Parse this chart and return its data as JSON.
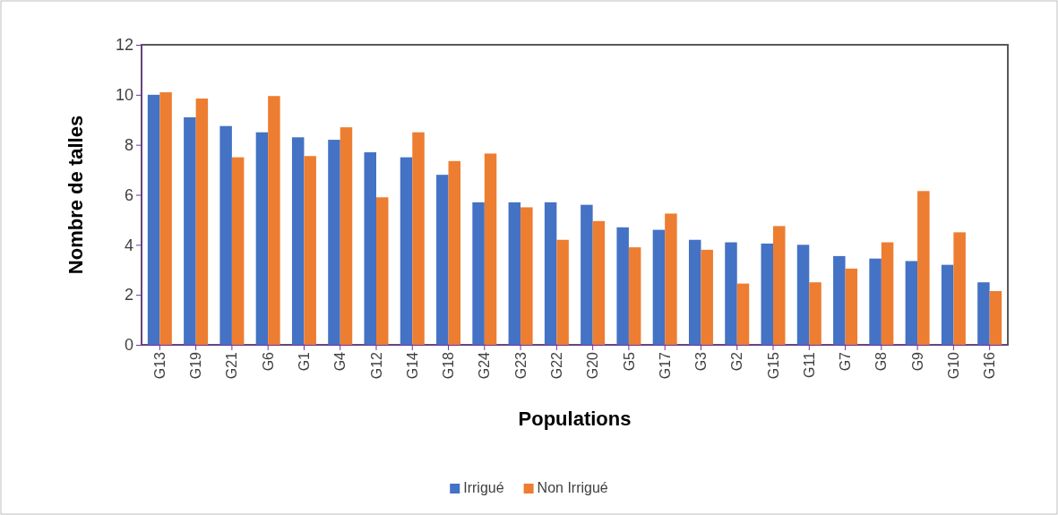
{
  "chart_data": {
    "type": "bar",
    "xlabel": "Populations",
    "ylabel": "Nombre de talles",
    "categories": [
      "G13",
      "G19",
      "G21",
      "G6",
      "G1",
      "G4",
      "G12",
      "G14",
      "G18",
      "G24",
      "G23",
      "G22",
      "G20",
      "G5",
      "G17",
      "G3",
      "G2",
      "G15",
      "G11",
      "G7",
      "G8",
      "G9",
      "G10",
      "G16"
    ],
    "series": [
      {
        "name": "Irrigué",
        "color": "#4472c4",
        "values": [
          10.0,
          9.1,
          8.75,
          8.5,
          8.3,
          8.2,
          7.7,
          7.5,
          6.8,
          5.7,
          5.7,
          5.7,
          5.6,
          4.7,
          4.6,
          4.2,
          4.1,
          4.05,
          4.0,
          3.55,
          3.45,
          3.35,
          3.2,
          2.5
        ]
      },
      {
        "name": "Non Irrigué",
        "color": "#ed7d31",
        "values": [
          10.1,
          9.85,
          7.5,
          9.95,
          7.55,
          8.7,
          5.9,
          8.5,
          7.35,
          7.65,
          5.5,
          4.2,
          4.95,
          3.9,
          5.25,
          3.8,
          2.45,
          4.75,
          2.5,
          3.05,
          4.1,
          6.15,
          4.5,
          2.15
        ]
      }
    ],
    "ylim": [
      0,
      12
    ],
    "yticks": [
      0,
      2,
      4,
      6,
      8,
      10,
      12
    ],
    "grid": false,
    "legend": "bottom"
  }
}
